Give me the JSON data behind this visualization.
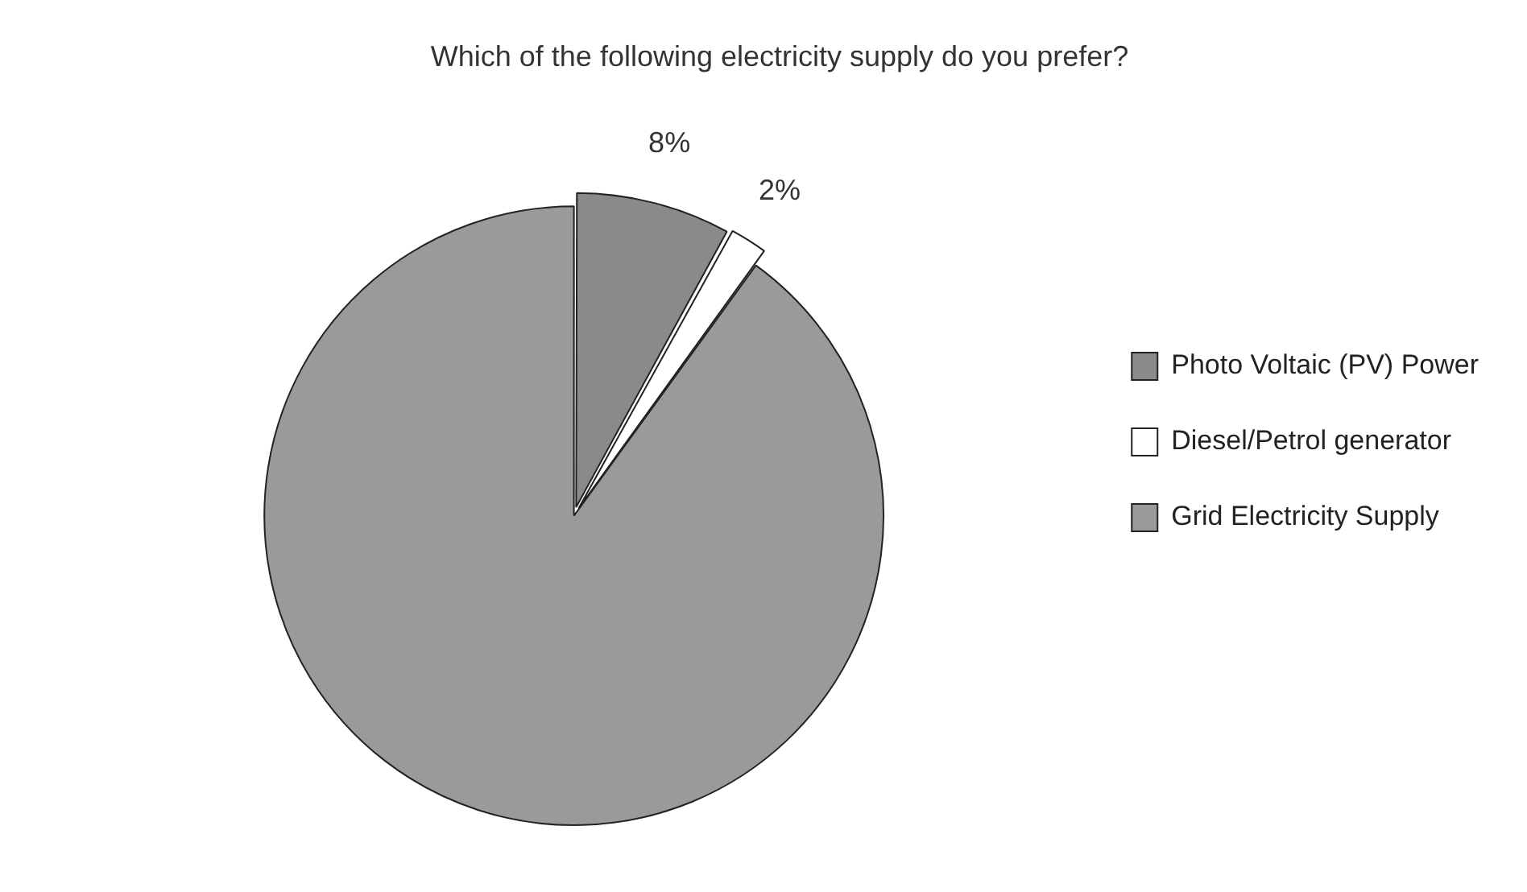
{
  "chart_data": {
    "type": "pie",
    "title": "Which of the following electricity supply do you prefer?",
    "categories": [
      "Photo Voltaic (PV) Power",
      "Diesel/Petrol generator",
      "Grid Electricity Supply"
    ],
    "values": [
      8,
      2,
      90
    ],
    "colors": [
      "#8a8a8a",
      "#ffffff",
      "#9a9a9a"
    ],
    "value_labels": [
      "8%",
      "2%",
      null
    ],
    "legend": "right"
  }
}
